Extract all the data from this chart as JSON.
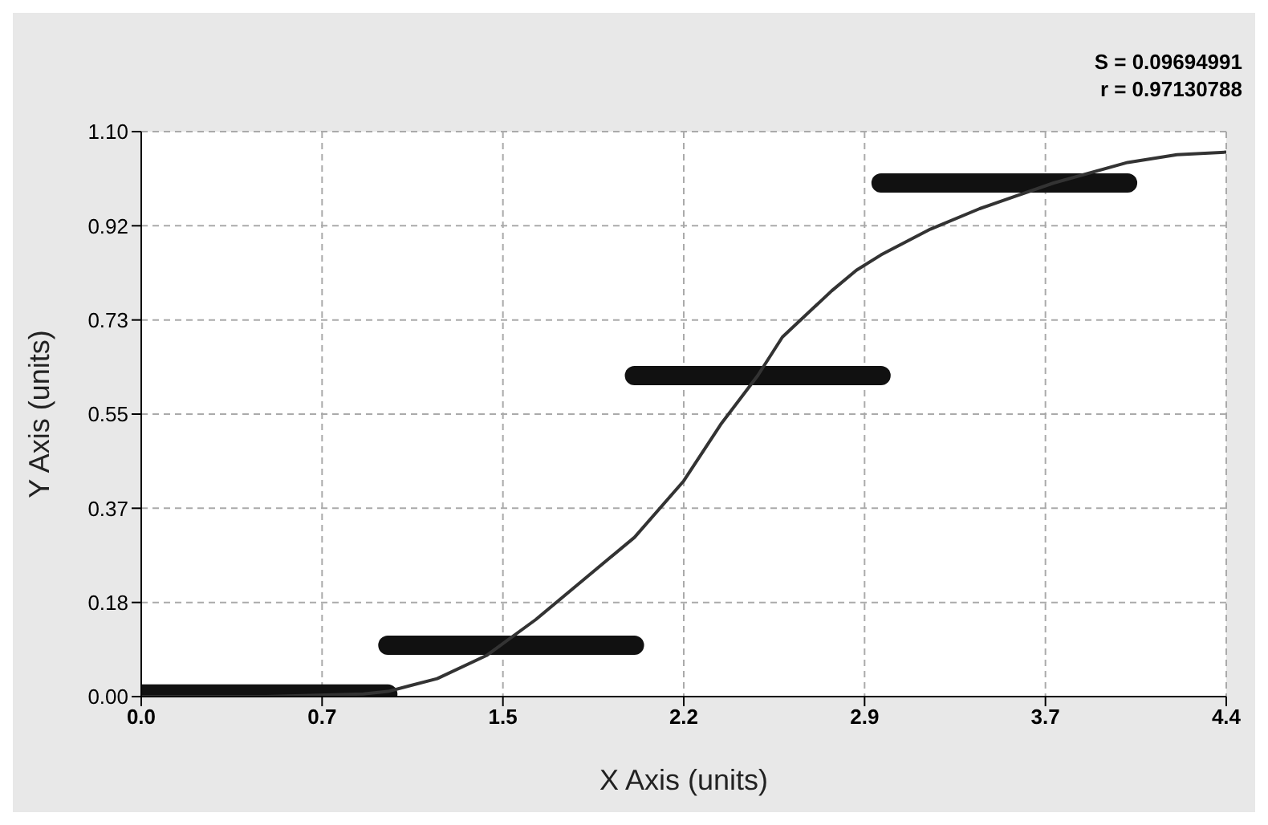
{
  "chart_data": {
    "type": "line",
    "xlabel": "X Axis (units)",
    "ylabel": "Y Axis (units)",
    "annotations": [
      "S = 0.09694991",
      "r = 0.97130788"
    ],
    "xlim": [
      0,
      4.4
    ],
    "ylim": [
      0,
      1.1
    ],
    "xticks": [
      {
        "value": 0,
        "label": "0.0"
      },
      {
        "value": 0.7333,
        "label": "0.7"
      },
      {
        "value": 1.4667,
        "label": "1.5"
      },
      {
        "value": 2.2,
        "label": "2.2"
      },
      {
        "value": 2.9333,
        "label": "2.9"
      },
      {
        "value": 3.6667,
        "label": "3.7"
      },
      {
        "value": 4.4,
        "label": "4.4"
      }
    ],
    "yticks": [
      {
        "value": 0,
        "label": "0.00"
      },
      {
        "value": 0.1833,
        "label": "0.18"
      },
      {
        "value": 0.3667,
        "label": "0.37"
      },
      {
        "value": 0.55,
        "label": "0.55"
      },
      {
        "value": 0.7333,
        "label": "0.73"
      },
      {
        "value": 0.9167,
        "label": "0.92"
      },
      {
        "value": 1.1,
        "label": "1.10"
      }
    ],
    "grid": true,
    "marker": "none",
    "line_style": "solid",
    "series": [
      {
        "color": "#111111",
        "x": [
          0,
          1
        ],
        "values": [
          0.005,
          0.005
        ]
      },
      {
        "color": "#111111",
        "x": [
          1,
          2
        ],
        "values": [
          0.1,
          0.1
        ]
      },
      {
        "color": "#111111",
        "x": [
          2,
          3
        ],
        "values": [
          0.625,
          0.625
        ]
      },
      {
        "color": "#111111",
        "x": [
          3,
          4
        ],
        "values": [
          1.0,
          1.0
        ]
      },
      {
        "color": "#333333",
        "x": [
          0,
          0.5,
          0.9,
          1.0,
          1.2,
          1.4,
          1.6,
          1.8,
          2.0,
          2.2,
          2.35,
          2.5,
          2.6,
          2.8,
          2.9,
          3.0,
          3.2,
          3.4,
          3.7,
          4.0,
          4.2,
          4.4
        ],
        "values": [
          0,
          0,
          0.005,
          0.01,
          0.035,
          0.08,
          0.15,
          0.23,
          0.31,
          0.42,
          0.53,
          0.625,
          0.7,
          0.79,
          0.83,
          0.86,
          0.91,
          0.95,
          1.0,
          1.04,
          1.055,
          1.06
        ]
      }
    ]
  }
}
